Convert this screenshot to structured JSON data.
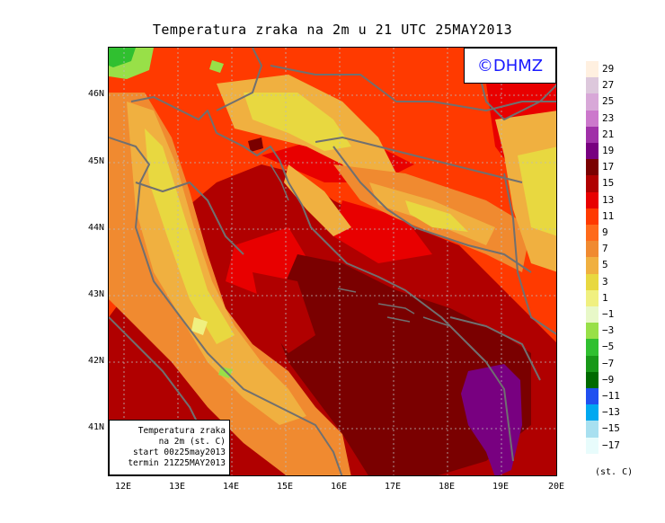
{
  "title": "Temperatura zraka na 2m u 21 UTC 25MAY2013",
  "logo": "©DHMZ",
  "info_box": {
    "line1": "Temperatura zraka",
    "line2": "na 2m (st. C)",
    "line3": "start 00z25may2013",
    "line4": "termin 21Z25MAY2013"
  },
  "axes": {
    "lat_labels": [
      "46N",
      "45N",
      "44N",
      "43N",
      "42N",
      "41N"
    ],
    "lon_labels": [
      "12E",
      "13E",
      "14E",
      "15E",
      "16E",
      "17E",
      "18E",
      "19E",
      "20E"
    ]
  },
  "legend": {
    "unit": "(st. C)",
    "labels": [
      "29",
      "27",
      "25",
      "23",
      "21",
      "19",
      "17",
      "15",
      "13",
      "11",
      "9",
      "7",
      "5",
      "3",
      "1",
      "−1",
      "−3",
      "−5",
      "−7",
      "−9",
      "−11",
      "−13",
      "−15",
      "−17"
    ],
    "colors": [
      "#fff0e0",
      "#ddc8dc",
      "#d8a8d8",
      "#cc78cc",
      "#a030a8",
      "#780080",
      "#7a0000",
      "#b00000",
      "#e80000",
      "#ff3a00",
      "#ff6a1a",
      "#f08a30",
      "#f0b040",
      "#e8d840",
      "#f0f080",
      "#e8f8c8",
      "#98e048",
      "#30c030",
      "#189818",
      "#006a00",
      "#2050f0",
      "#00a8f0",
      "#a8e0f0",
      "#e8fcfc"
    ]
  }
}
